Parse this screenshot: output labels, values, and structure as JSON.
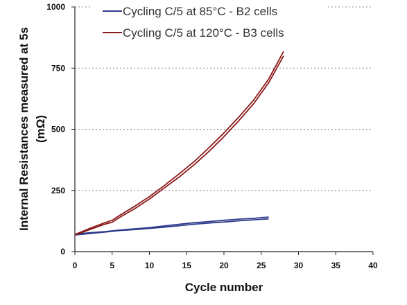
{
  "chart_data": {
    "type": "line",
    "title": "",
    "xlabel": "Cycle number",
    "ylabel": [
      "Internal Resistances measured at 5s",
      "(mΩ)"
    ],
    "xlim": [
      0,
      40
    ],
    "ylim": [
      0,
      1000
    ],
    "x_ticks": [
      "0",
      "5",
      "10",
      "15",
      "20",
      "25",
      "30",
      "35",
      "40"
    ],
    "y_ticks": [
      "0",
      "250",
      "500",
      "750",
      "1000"
    ],
    "grid": "horizontal dotted",
    "legend_position": "top",
    "series": [
      {
        "name": "Cycling C/5 at 85°C - B2 cells",
        "color": "#2e3a8c",
        "lines": [
          {
            "x": [
              0,
              2,
              4,
              6,
              8,
              10,
              12,
              14,
              16,
              18,
              20,
              22,
              24,
              25,
              26
            ],
            "y": [
              68,
              74,
              80,
              86,
              90,
              95,
              100,
              106,
              112,
              117,
              121,
              126,
              130,
              132,
              134
            ]
          },
          {
            "x": [
              0,
              2,
              4,
              6,
              8,
              10,
              12,
              14,
              16,
              18,
              20,
              22,
              24,
              25,
              26
            ],
            "y": [
              72,
              77,
              82,
              88,
              93,
              98,
              105,
              112,
              118,
              123,
              128,
              133,
              136,
              139,
              141
            ]
          }
        ]
      },
      {
        "name": "Cycling C/5 at 120°C - B3 cells",
        "color": "#8b1a1a",
        "lines": [
          {
            "x": [
              0,
              2,
              4,
              5,
              6,
              8,
              10,
              12,
              14,
              16,
              18,
              20,
              22,
              24,
              26,
              28
            ],
            "y": [
              68,
              90,
              112,
              120,
              140,
              175,
              215,
              260,
              305,
              355,
              410,
              470,
              535,
              605,
              690,
              800
            ]
          },
          {
            "x": [
              0,
              2,
              4,
              5,
              6,
              8,
              10,
              12,
              14,
              16,
              18,
              20,
              22,
              24,
              26,
              28
            ],
            "y": [
              70,
              95,
              118,
              128,
              148,
              185,
              225,
              270,
              318,
              368,
              425,
              485,
              550,
              620,
              705,
              818
            ]
          }
        ]
      }
    ]
  }
}
